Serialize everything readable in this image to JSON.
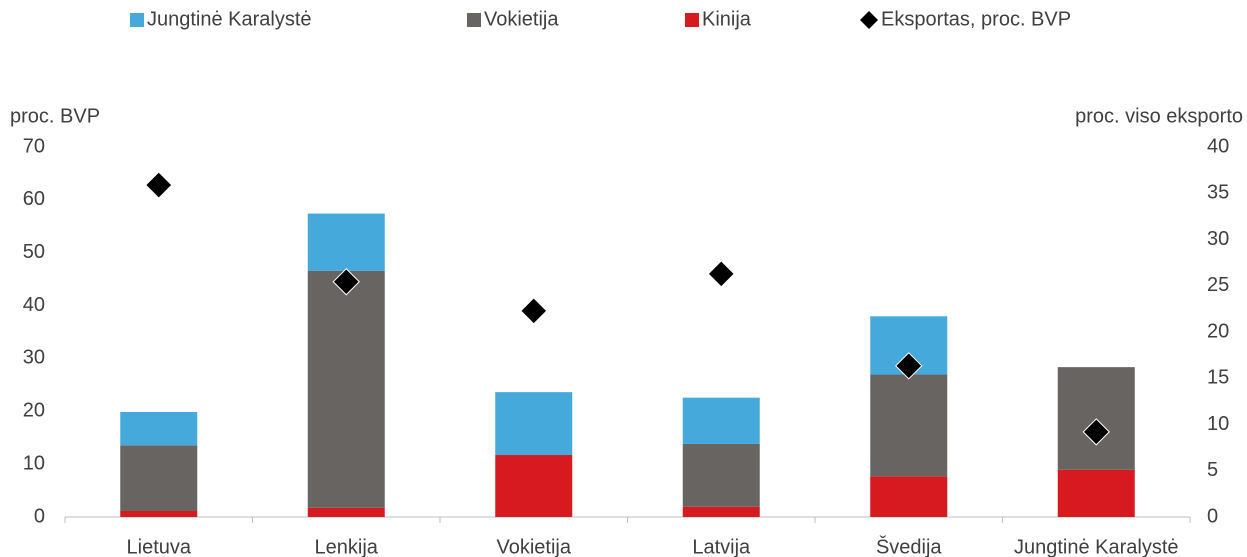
{
  "chart_data": {
    "type": "bar",
    "categories": [
      "Lietuva",
      "Lenkija",
      "Vokietija",
      "Latvija",
      "Švedija",
      "Jungtinė Karalystė"
    ],
    "series": [
      {
        "name": "Kinija",
        "color": "#d71920",
        "axis": "y2",
        "values": [
          0.65,
          1.0,
          6.7,
          1.1,
          4.4,
          5.1
        ]
      },
      {
        "name": "Vokietija",
        "color": "#686462",
        "axis": "y2",
        "values": [
          7.1,
          25.6,
          null,
          6.8,
          11.0,
          11.1
        ]
      },
      {
        "name": "Jungtinė Karalystė",
        "color": "#45aadb",
        "axis": "y2",
        "values": [
          3.6,
          6.2,
          6.8,
          5.0,
          6.3,
          null
        ]
      },
      {
        "name": "Eksportas, proc. BVP",
        "color": "#000000",
        "type": "scatter",
        "values": [
          62.8,
          44.5,
          39.0,
          46.0,
          28.6,
          16.1
        ]
      }
    ],
    "legend_order": [
      2,
      1,
      0,
      3
    ],
    "ylabel": "proc. BVP",
    "y2label": "proc. viso eksporto",
    "ylim": [
      0,
      70
    ],
    "yticks": [
      0,
      10,
      20,
      30,
      40,
      50,
      60,
      70
    ],
    "y2lim": [
      0,
      40
    ],
    "y2ticks": [
      0,
      5,
      10,
      15,
      20,
      25,
      30,
      35,
      40
    ]
  }
}
